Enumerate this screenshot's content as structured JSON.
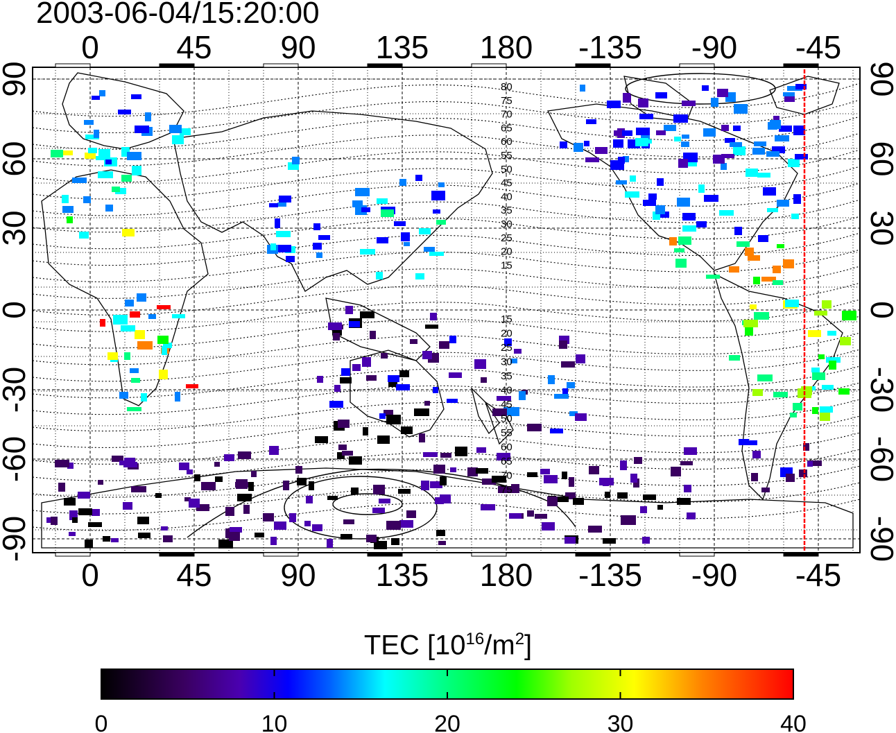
{
  "title": "2003-06-04/15:20:00",
  "map": {
    "x_ticks": [
      "0",
      "45",
      "90",
      "135",
      "180",
      "-135",
      "-90",
      "-45"
    ],
    "y_ticks": [
      "90",
      "60",
      "30",
      "0",
      "-30",
      "-60",
      "-90"
    ],
    "contour_labels_north": [
      "80",
      "75",
      "70",
      "65",
      "60",
      "55",
      "50",
      "45",
      "40",
      "35",
      "30",
      "25",
      "20",
      "15"
    ],
    "contour_labels_south": [
      "15",
      "20",
      "25",
      "30",
      "35",
      "40",
      "45",
      "50",
      "55",
      "60",
      "65",
      "70",
      "75"
    ]
  },
  "colorbar": {
    "title_main": "TEC  [10",
    "title_exp1": "16",
    "title_mid": "/m",
    "title_exp2": "2",
    "title_end": "]",
    "ticks": [
      "0",
      "10",
      "20",
      "30",
      "40"
    ],
    "range": [
      0,
      40
    ]
  },
  "colors": {
    "terminator": "#ff0000",
    "scale": [
      "#000000",
      "#3a0060",
      "#4a00b0",
      "#0000ff",
      "#0080ff",
      "#00ffff",
      "#00ff80",
      "#00ff00",
      "#a0ff00",
      "#ffff00",
      "#ff8000",
      "#ff0000"
    ]
  }
}
